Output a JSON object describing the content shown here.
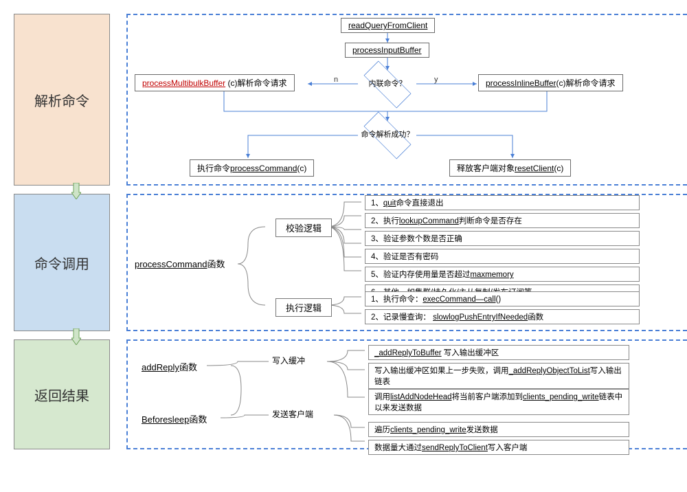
{
  "colors": {
    "panel_border": "#4a7fd6",
    "box_border": "#6a6a6a",
    "arrow": "#4a7fd6",
    "accent_red": "#c00000",
    "stage1_bg": "#f8e2cf",
    "stage2_bg": "#c9ddf0",
    "stage3_bg": "#d6e8cf",
    "vconn_fill": "#cfe4c8"
  },
  "stage1": {
    "title": "解析命令",
    "nodes": {
      "read": "readQueryFromClient",
      "pib": "processInputBuffer",
      "dec1": "内联命令？",
      "dec1_n": "n",
      "dec1_y": "y",
      "left_red": "processMultibulkBuffer",
      "left_tail": " (c)解析命令请求",
      "right_u": "processInlineBuffer",
      "right_tail": "(c)解析命令请求",
      "dec2_l1": "命令解析",
      "dec2_l2": "成功？",
      "exec_pre": "执行命令",
      "exec_u": "processCommand",
      "exec_suf": "(c)",
      "reset_pre": "释放客户端对象",
      "reset_u": "resetClient",
      "reset_suf": "(c)"
    }
  },
  "stage2": {
    "title": "命令调用",
    "root_u": "processCommand",
    "root_tail": "函数",
    "sub1": "校验逻辑",
    "sub2": "执行逻辑",
    "leaves1": [
      {
        "pre": "1、",
        "u": "quit",
        "post": "命令直接退出"
      },
      {
        "pre": "2、执行",
        "u": "lookupCommand",
        "post": "判断命令是否存在"
      },
      {
        "pre": "3、验证参数个数是否正确",
        "u": "",
        "post": ""
      },
      {
        "pre": "4、验证是否有密码",
        "u": "",
        "post": ""
      },
      {
        "pre": "5、验证内存使用量是否超过",
        "u": "maxmemory",
        "post": ""
      },
      {
        "pre": "6、其他，如集群/持久化/主从复制/发布订阅等",
        "u": "",
        "post": ""
      }
    ],
    "leaves2": [
      {
        "pre": "1、执行命令：",
        "u": "execCommand—call",
        "post": "()"
      },
      {
        "pre": "2、记录慢查询：   ",
        "u": "slowlogPushEntryIfNeeded",
        "post": "函数"
      }
    ]
  },
  "stage3": {
    "title": "返回结果",
    "r1_u": "addReply",
    "r1_tail": "函数",
    "r2_u": "Beforesleep",
    "r2_tail": "函数",
    "sub1": "写入缓冲",
    "sub2": "发送客户端",
    "leavesA": [
      {
        "pre": "",
        "u": "_addReplyToBuffer",
        "post": " 写入输出缓冲区"
      },
      {
        "pre": "写入输出缓冲区如果上一步失败，调用",
        "u": "_addReplyObjectToList",
        "post": "写入输出链表"
      }
    ],
    "leavesB": [
      {
        "pre": "调用",
        "u": "listAddNodeHead",
        "post": "将当前客户端添加到",
        "u2": "clients_pending_write",
        "post2": "链表中以来发送数据"
      }
    ],
    "leavesC": [
      {
        "pre": "遍历",
        "u": "clients_pending_write",
        "post": "发送数据"
      },
      {
        "pre": "数据量大通过",
        "u": "sendReplyToClient",
        "post": "写入客户端"
      }
    ]
  }
}
